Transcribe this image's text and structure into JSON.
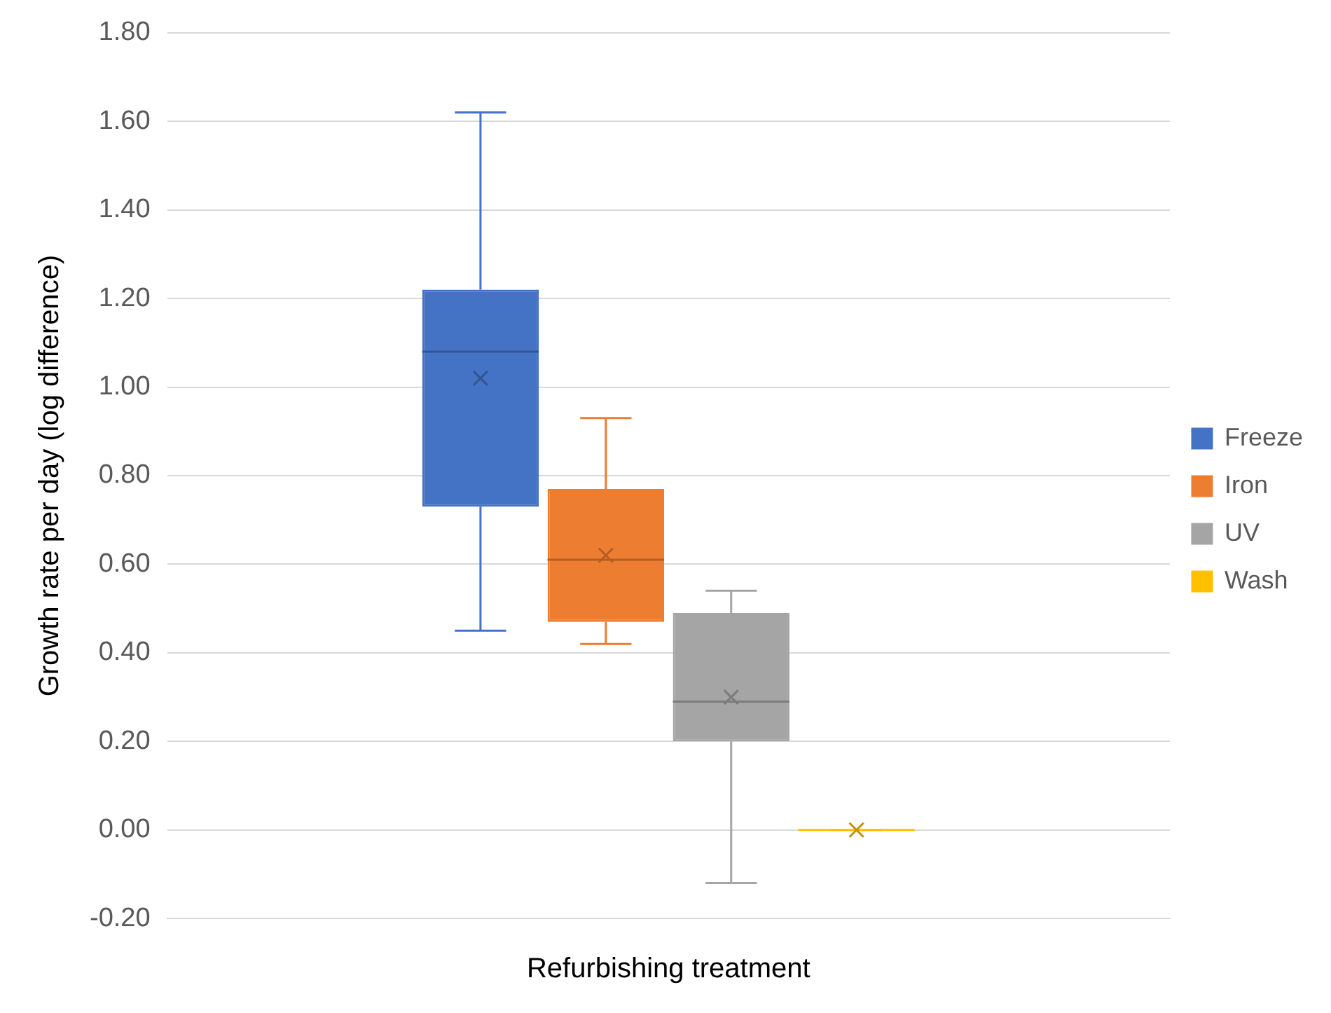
{
  "chart_data": {
    "type": "box",
    "xlabel": "Refurbishing treatment",
    "ylabel": "Growth rate per day (log difference)",
    "categories": [
      null
    ],
    "ylim": [
      -0.2,
      1.8
    ],
    "yticks": [
      {
        "value": -0.2,
        "label": "-0.20"
      },
      {
        "value": 0,
        "label": "0.00"
      },
      {
        "value": 0.2,
        "label": "0.20"
      },
      {
        "value": 0.4,
        "label": "0.40"
      },
      {
        "value": 0.6,
        "label": "0.60"
      },
      {
        "value": 0.8,
        "label": "0.80"
      },
      {
        "value": 1,
        "label": "1.00"
      },
      {
        "value": 1.2,
        "label": "1.20"
      },
      {
        "value": 1.4,
        "label": "1.40"
      },
      {
        "value": 1.6,
        "label": "1.60"
      },
      {
        "value": 1.8,
        "label": "1.80"
      }
    ],
    "grid": "y",
    "legend": "right",
    "series": [
      {
        "name": "Freeze",
        "color": "#4472c4",
        "boxes": [
          {
            "low": 0.45,
            "q1": 0.73,
            "median": 1.08,
            "q3": 1.22,
            "high": 1.62,
            "mean": 1.02
          }
        ]
      },
      {
        "name": "Iron",
        "color": "#ed7d31",
        "boxes": [
          {
            "low": 0.42,
            "q1": 0.47,
            "median": 0.61,
            "q3": 0.77,
            "high": 0.93,
            "mean": 0.62
          }
        ]
      },
      {
        "name": "UV",
        "color": "#a5a5a5",
        "boxes": [
          {
            "low": -0.12,
            "q1": 0.2,
            "median": 0.29,
            "q3": 0.49,
            "high": 0.54,
            "mean": 0.3
          }
        ]
      },
      {
        "name": "Wash",
        "color": "#ffc000",
        "boxes": [
          {
            "low": 0,
            "q1": 0,
            "median": 0,
            "q3": 0,
            "high": 0,
            "mean": 0
          }
        ]
      }
    ]
  }
}
